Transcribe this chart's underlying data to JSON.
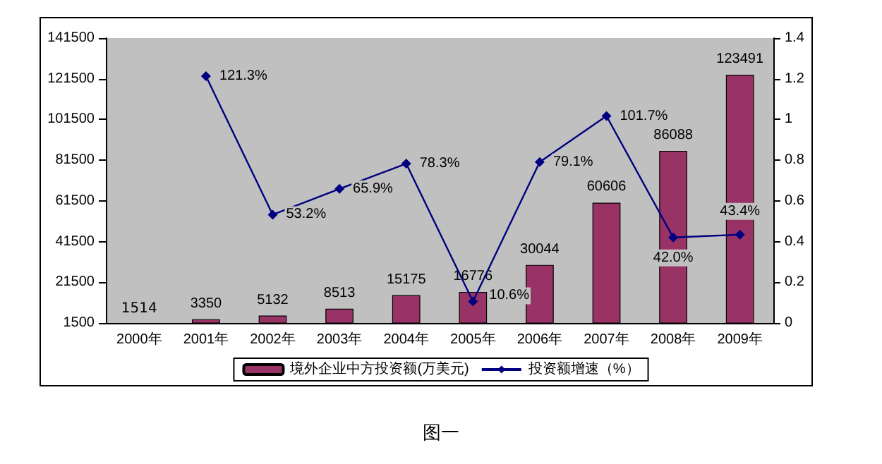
{
  "chart_data": {
    "type": "bar",
    "categories": [
      "2000年",
      "2001年",
      "2002年",
      "2003年",
      "2004年",
      "2005年",
      "2006年",
      "2007年",
      "2008年",
      "2009年"
    ],
    "series": [
      {
        "name": "境外企业中方投资额(万美元)",
        "color": "#993366",
        "values": [
          1514,
          3350,
          5132,
          8513,
          15175,
          16776,
          30044,
          60606,
          86088,
          123491
        ],
        "value_labels": [
          "1514",
          "3350",
          "5132",
          "8513",
          "15175",
          "16776",
          "30044",
          "60606",
          "86088",
          "123491"
        ]
      },
      {
        "name": "投资额增速（%）",
        "type": "line",
        "axis": "y2",
        "color": "#000080",
        "marker": "diamond",
        "values": [
          null,
          1.213,
          0.532,
          0.659,
          0.783,
          0.106,
          0.791,
          1.017,
          0.42,
          0.434
        ],
        "value_labels": [
          null,
          "121.3%",
          "53.2%",
          "65.9%",
          "78.3%",
          "10.6%",
          "79.1%",
          "101.7%",
          "42.0%",
          "43.4%"
        ]
      }
    ],
    "ylim": [
      1500,
      141500
    ],
    "yticks": [
      1500,
      21500,
      41500,
      61500,
      81500,
      101500,
      121500,
      141500
    ],
    "y2lim": [
      0,
      1.4
    ],
    "y2ticks": [
      0,
      0.2,
      0.4,
      0.6,
      0.8,
      1,
      1.2,
      1.4
    ],
    "legend": "bottom",
    "grid": false,
    "annotations": [
      "图一"
    ]
  }
}
